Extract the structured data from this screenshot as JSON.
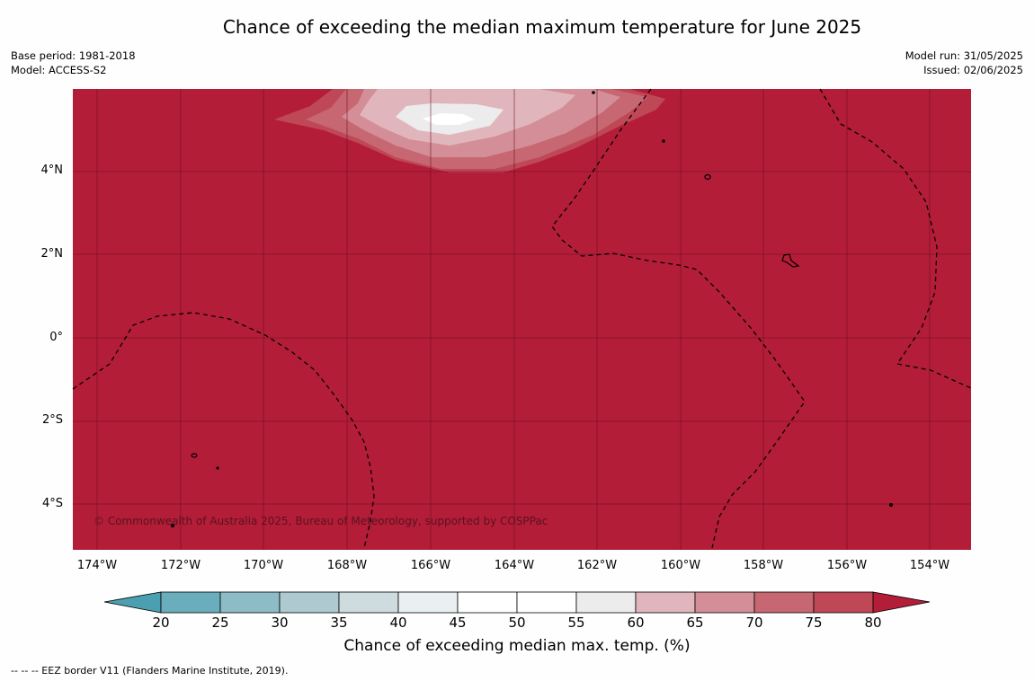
{
  "title": "Chance of exceeding the median maximum temperature for June 2025",
  "meta_left": [
    "Base period: 1981-2018",
    "Model: ACCESS-S2"
  ],
  "meta_right": [
    "Model run: 31/05/2025",
    "Issued: 02/06/2025"
  ],
  "map": {
    "lat_labels": [
      "4°N",
      "2°N",
      "0°",
      "2°S",
      "4°S"
    ],
    "lon_labels": [
      "174°W",
      "172°W",
      "170°W",
      "168°W",
      "166°W",
      "164°W",
      "162°W",
      "160°W",
      "158°W",
      "156°W",
      "154°W"
    ],
    "background_category": "75-80 %",
    "copyright": "© Commonwealth of Australia 2025, Bureau of Meteorology, supported by COSPPac"
  },
  "colorbar": {
    "ticks": [
      "20",
      "25",
      "30",
      "35",
      "40",
      "45",
      "50",
      "55",
      "60",
      "65",
      "70",
      "75",
      "80"
    ],
    "colors": [
      "#4aa0b0",
      "#6aaebd",
      "#8dbcc6",
      "#aecad0",
      "#cfdcdf",
      "#eaf0f1",
      "#ffffff",
      "#ffffff",
      "#ececec",
      "#e0b6bc",
      "#d38e97",
      "#c66772",
      "#bf4856",
      "#b31d38"
    ],
    "label": "Chance of exceeding median max. temp. (%)"
  },
  "footnote": "--  --  -- EEZ border V11 (Flanders Marine Institute, 2019)."
}
